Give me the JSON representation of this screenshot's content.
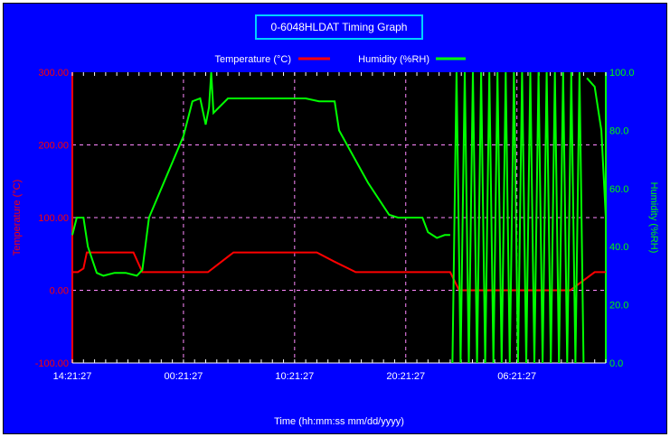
{
  "chart_data": {
    "type": "line",
    "title": "0-6048HLDAT Timing Graph",
    "xlabel": "Time (hh:mm:ss mm/dd/yyyy)",
    "ylabel_left": "Temperature (°C)",
    "ylabel_right": "Humidity (%RH)",
    "ylim_left": [
      -100,
      300
    ],
    "ylim_right": [
      0,
      100
    ],
    "x_unit": "hours since 14:21:27",
    "xlim": [
      0,
      48
    ],
    "x_ticks": [
      {
        "x": 0,
        "label": "14:21:27"
      },
      {
        "x": 10,
        "label": "00:21:27"
      },
      {
        "x": 20,
        "label": "10:21:27"
      },
      {
        "x": 30,
        "label": "20:21:27"
      },
      {
        "x": 40,
        "label": "06:21:27"
      }
    ],
    "y_ticks_left": [
      {
        "y": 300,
        "label": "300.00"
      },
      {
        "y": 200,
        "label": "200.00"
      },
      {
        "y": 100,
        "label": "100.00"
      },
      {
        "y": 0,
        "label": "0.00"
      },
      {
        "y": -100,
        "label": "-100.00"
      }
    ],
    "y_ticks_right": [
      {
        "y": 100,
        "label": "100.0"
      },
      {
        "y": 80,
        "label": "80.0"
      },
      {
        "y": 60,
        "label": "60.0"
      },
      {
        "y": 40,
        "label": "40.0"
      },
      {
        "y": 20,
        "label": "20.0"
      },
      {
        "y": 0,
        "label": "0.0"
      }
    ],
    "grid": true,
    "legend_position": "top-center",
    "series": [
      {
        "name": "Temperature (°C)",
        "axis": "left",
        "color": "#ff0000",
        "x": [
          0,
          0.5,
          1,
          1.3,
          5.5,
          6.3,
          12.2,
          14.5,
          22,
          23.5,
          25.5,
          34,
          34.8,
          41,
          44.8,
          47,
          48
        ],
        "y": [
          25,
          25,
          30,
          52,
          52,
          25,
          25,
          52,
          52,
          40,
          25,
          25,
          0,
          0,
          0,
          25,
          25
        ]
      },
      {
        "name": "Humidity (%RH)",
        "axis": "right",
        "color": "#00ff00",
        "x": [
          0,
          0.4,
          1,
          1.4,
          2.2,
          2.8,
          3.8,
          4.8,
          5.8,
          6.3,
          6.9,
          10,
          10.8,
          11.5,
          12,
          12.3,
          12.5,
          12.7,
          14,
          16,
          19,
          21,
          22.2,
          23,
          23.6,
          24,
          26.6,
          28.5,
          29.3,
          30,
          31.5,
          32,
          32.8,
          33.5,
          34
        ],
        "y": [
          44,
          50,
          50,
          40,
          31,
          30,
          31,
          31,
          30,
          32,
          50,
          78,
          90,
          91,
          82,
          88,
          100,
          86,
          91,
          91,
          91,
          91,
          90,
          90,
          90,
          80,
          62,
          51,
          50,
          50,
          50,
          45,
          43,
          44,
          44
        ]
      }
    ],
    "humidity_oscillation": {
      "x_start": 34.2,
      "x_end": 46,
      "low": 0,
      "high": 100,
      "cycles": 16
    },
    "humidity_tail": {
      "x": [
        46.3,
        47,
        47.6,
        48
      ],
      "y": [
        98,
        95,
        80,
        50
      ]
    }
  },
  "legend": {
    "temperature_label": "Temperature (°C)",
    "humidity_label": "Humidity (%RH)"
  },
  "colors": {
    "background": "#0000ff",
    "plot_bg": "#000000",
    "temperature": "#ff0000",
    "humidity": "#00ff00",
    "grid": "#ff88ff",
    "title_border": "#00d0ff",
    "text": "#ffffff"
  }
}
